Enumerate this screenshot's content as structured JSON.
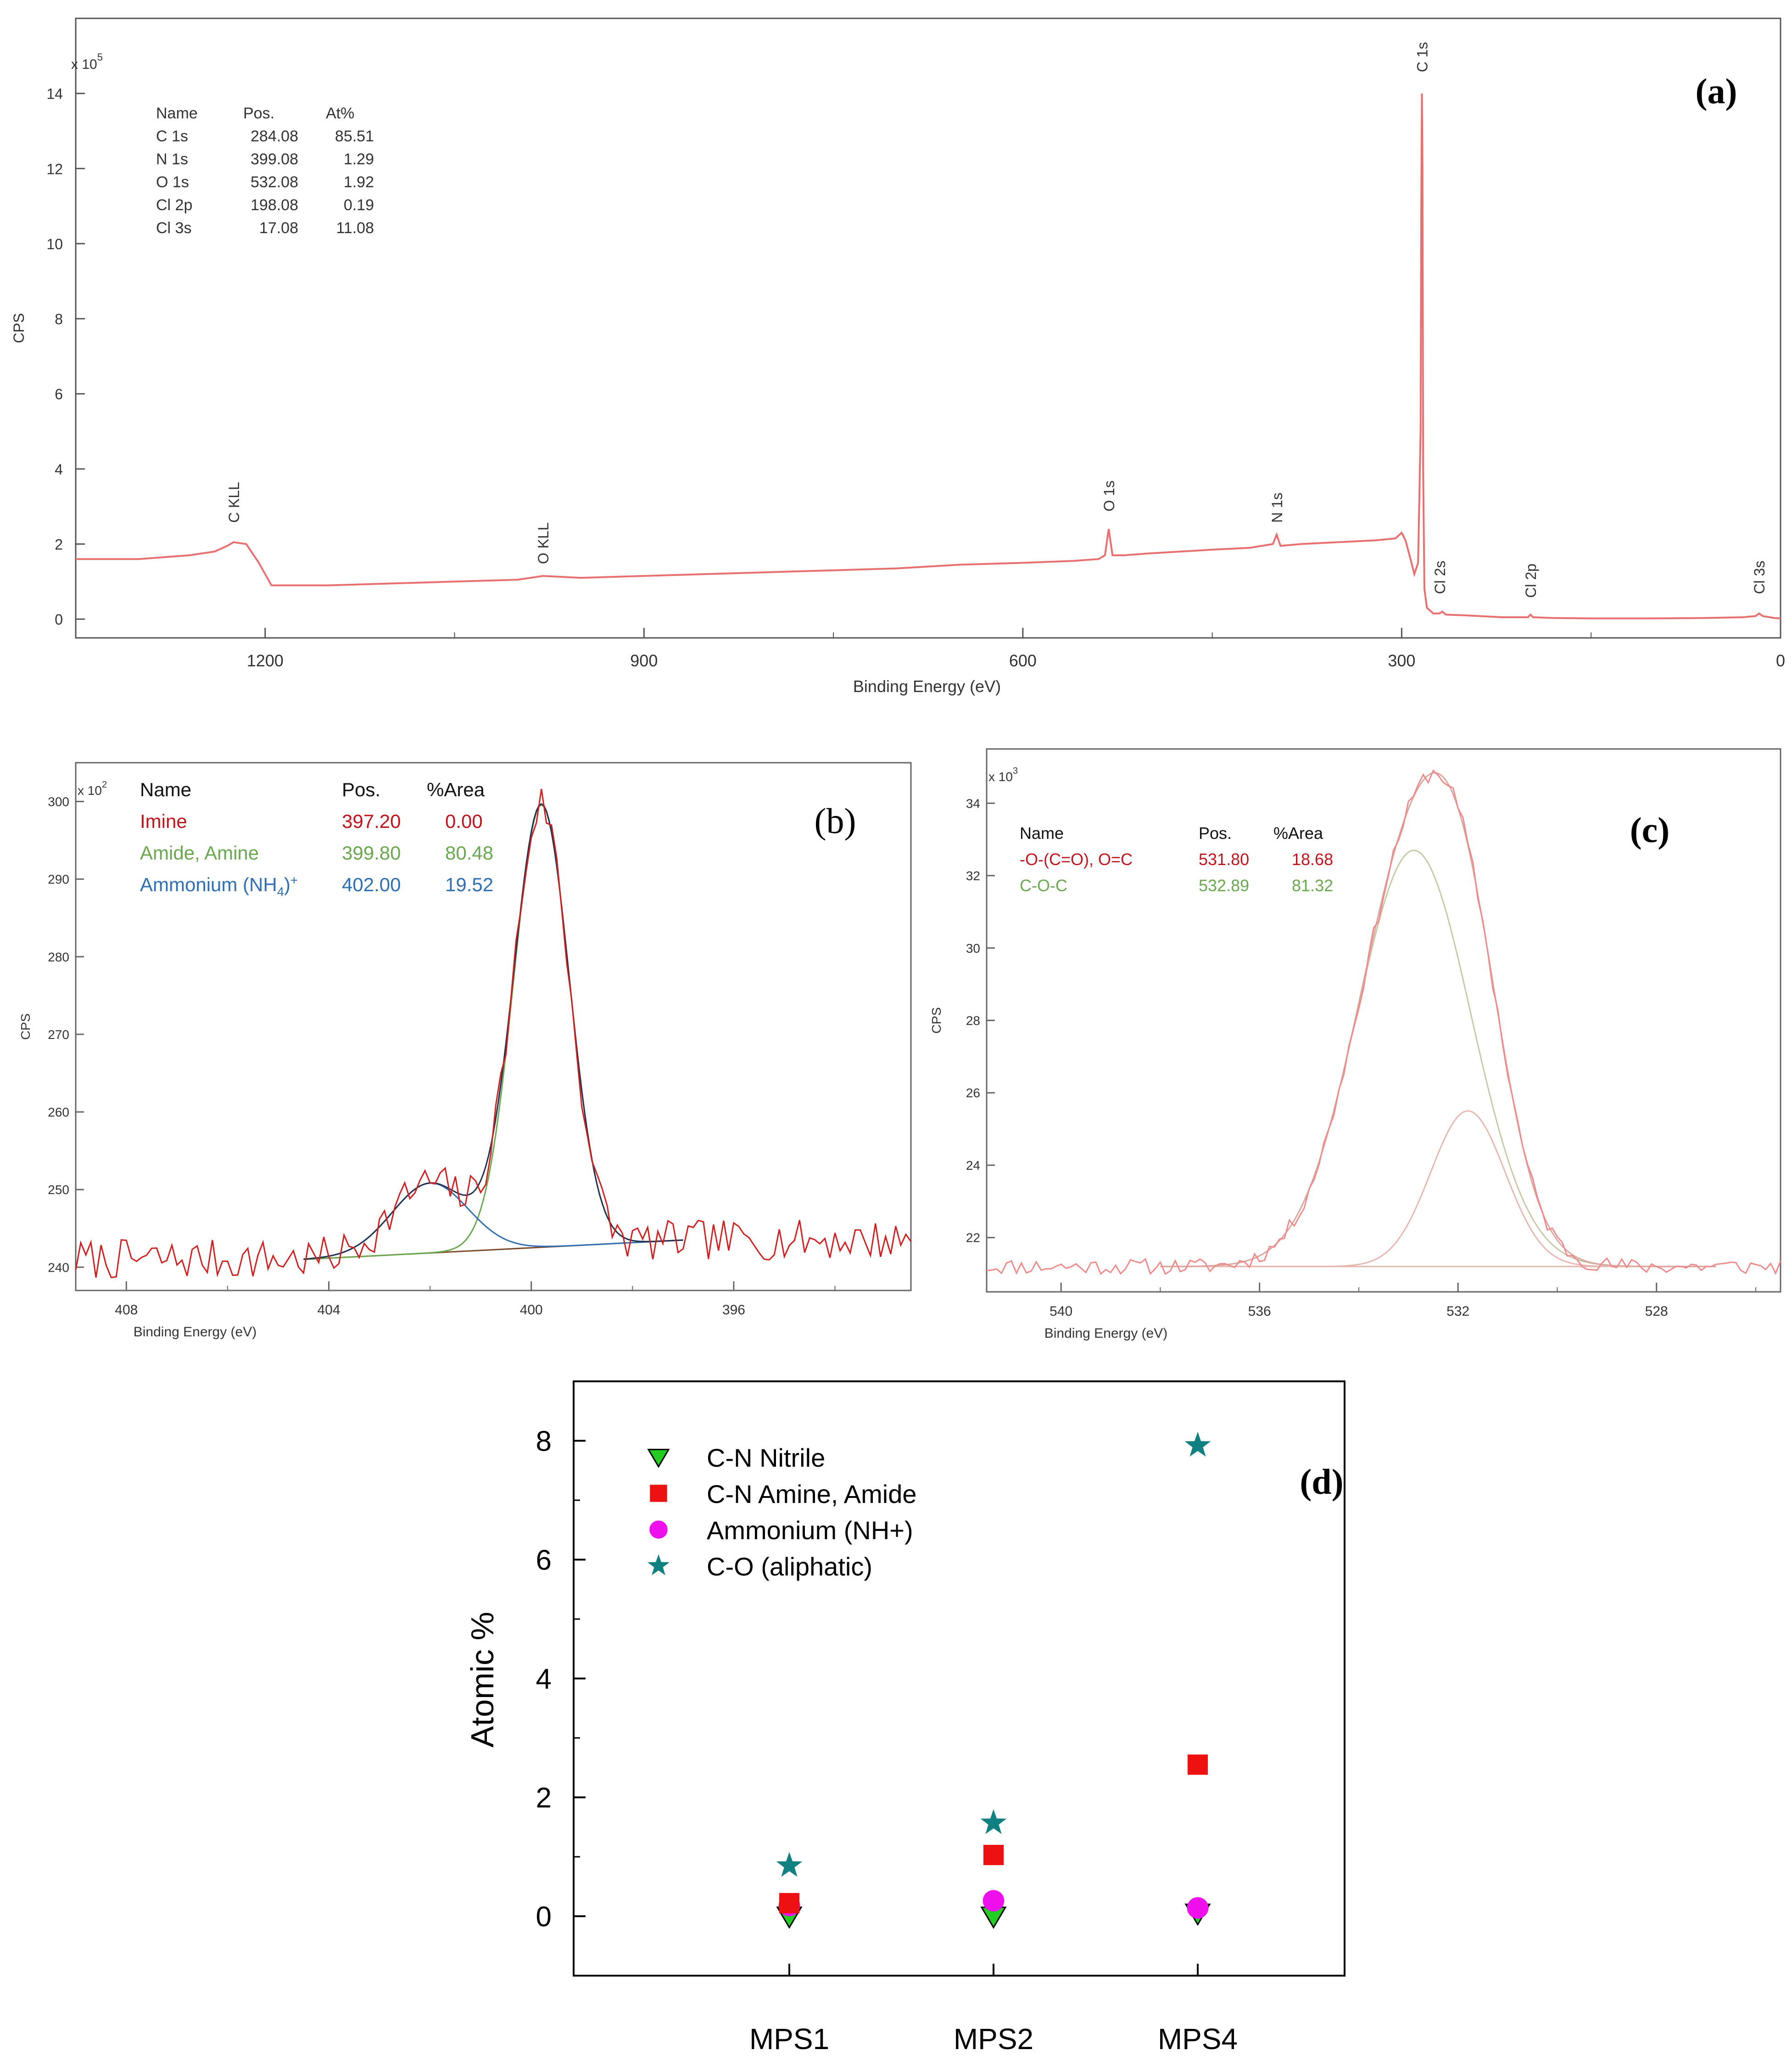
{
  "chart_data": [
    {
      "panel": "(a)",
      "type": "line",
      "xlabel": "Binding Energy (eV)",
      "ylabel": "CPS",
      "y_multiplier": "x 10",
      "y_exponent": "5",
      "x_reversed": true,
      "xlim": [
        1350,
        0
      ],
      "ylim": [
        -0.5,
        16
      ],
      "x_ticks": [
        "1200",
        "900",
        "600",
        "300",
        "0"
      ],
      "y_ticks": [
        "0",
        "2",
        "4",
        "6",
        "8",
        "10",
        "12",
        "14"
      ],
      "table": {
        "headers": [
          "Name",
          "Pos.",
          "At%"
        ],
        "rows": [
          [
            "C 1s",
            "284.08",
            "85.51"
          ],
          [
            "N 1s",
            "399.08",
            "1.29"
          ],
          [
            "O 1s",
            "532.08",
            "1.92"
          ],
          [
            "Cl 2p",
            "198.08",
            "0.19"
          ],
          [
            "Cl 3s",
            "17.08",
            "11.08"
          ]
        ]
      },
      "peak_labels": [
        {
          "text": "C KLL",
          "x": 1225,
          "y": 2.2
        },
        {
          "text": "O KLL",
          "x": 980,
          "y": 1.1
        },
        {
          "text": "O 1s",
          "x": 532,
          "y": 2.5
        },
        {
          "text": "N 1s",
          "x": 399,
          "y": 2.2
        },
        {
          "text": "C 1s",
          "x": 284,
          "y": 14.2
        },
        {
          "text": "Cl 2s",
          "x": 270,
          "y": 0.3
        },
        {
          "text": "Cl 2p",
          "x": 198,
          "y": 0.2
        },
        {
          "text": "Cl 3s",
          "x": 17,
          "y": 0.3
        }
      ],
      "series": [
        {
          "color": "#e87070",
          "x": [
            1350,
            1300,
            1260,
            1240,
            1230,
            1225,
            1215,
            1205,
            1195,
            1150,
            1100,
            1050,
            1000,
            980,
            950,
            900,
            850,
            800,
            750,
            700,
            650,
            600,
            560,
            540,
            535,
            532,
            529,
            520,
            500,
            450,
            420,
            402,
            399,
            396,
            380,
            350,
            320,
            305,
            300,
            297,
            293,
            290,
            287,
            285,
            284.5,
            284,
            283.5,
            283,
            282,
            280,
            275,
            270,
            268,
            265,
            250,
            220,
            200,
            198,
            196,
            180,
            150,
            100,
            60,
            30,
            20,
            17,
            14,
            5,
            0
          ],
          "y": [
            1.6,
            1.6,
            1.7,
            1.8,
            1.95,
            2.05,
            2.0,
            1.5,
            0.9,
            0.9,
            0.95,
            1.0,
            1.05,
            1.15,
            1.1,
            1.15,
            1.2,
            1.25,
            1.3,
            1.35,
            1.45,
            1.5,
            1.55,
            1.6,
            1.7,
            2.4,
            1.7,
            1.7,
            1.75,
            1.85,
            1.9,
            2.0,
            2.25,
            1.95,
            2.0,
            2.05,
            2.1,
            2.15,
            2.3,
            2.1,
            1.6,
            1.2,
            1.5,
            5.0,
            11.0,
            14.0,
            12.0,
            4.0,
            0.8,
            0.3,
            0.15,
            0.15,
            0.2,
            0.12,
            0.1,
            0.05,
            0.05,
            0.12,
            0.05,
            0.03,
            0.02,
            0.02,
            0.03,
            0.05,
            0.08,
            0.15,
            0.08,
            0.03,
            0.02
          ]
        }
      ]
    },
    {
      "panel": "(b)",
      "type": "line",
      "xlabel": "Binding Energy (eV)",
      "ylabel": "CPS",
      "y_multiplier": "x 10",
      "y_exponent": "2",
      "x_reversed": true,
      "xlim": [
        409,
        392.5
      ],
      "ylim": [
        237,
        305
      ],
      "x_ticks": [
        "408",
        "404",
        "400",
        "396"
      ],
      "y_ticks": [
        "240",
        "250",
        "260",
        "270",
        "280",
        "290",
        "300"
      ],
      "table": {
        "headers": [
          "Name",
          "Pos.",
          "%Area"
        ],
        "rows": [
          {
            "name": "Imine",
            "pos": "397.20",
            "area": "0.00",
            "color": "#c0141c"
          },
          {
            "name": "Amide, Amine",
            "pos": "399.80",
            "area": "80.48",
            "color": "#6aa84f"
          },
          {
            "name": "Ammonium (NH",
            "sub": "4",
            "sup": "+",
            "close": ")",
            "pos": "402.00",
            "area": "19.52",
            "color": "#2f6fb3"
          }
        ]
      },
      "components": [
        {
          "name": "Amide, Amine",
          "center": 399.8,
          "height": 57,
          "sigma": 0.55,
          "color": "#6aa84f"
        },
        {
          "name": "Ammonium (NH4)+",
          "center": 402.0,
          "height": 9,
          "sigma": 0.75,
          "color": "#2f6fb3"
        }
      ],
      "baseline": {
        "x": [
          404.5,
          397.0
        ],
        "y": [
          241.0,
          243.5
        ],
        "color": "#7a4a2a"
      },
      "envelope_color": "#1f3050",
      "raw": {
        "color": "#d01f1f",
        "x_start": 409,
        "x_end": 392.5,
        "step": 0.1,
        "noise_amp": 2.6,
        "seed": 7
      }
    },
    {
      "panel": "(c)",
      "type": "line",
      "xlabel": "Binding Energy (eV)",
      "ylabel": "CPS",
      "y_multiplier": "x 10",
      "y_exponent": "3",
      "x_reversed": true,
      "xlim": [
        541.5,
        525.5
      ],
      "ylim": [
        20.5,
        35.5
      ],
      "x_ticks": [
        "540",
        "536",
        "532",
        "528"
      ],
      "y_ticks": [
        "22",
        "24",
        "26",
        "28",
        "30",
        "32",
        "34"
      ],
      "table": {
        "headers": [
          "Name",
          "Pos.",
          "%Area"
        ],
        "rows": [
          {
            "name": "-O-(C=O), O=C",
            "pos": "531.80",
            "area": "18.68",
            "color": "#c0141c"
          },
          {
            "name": "C-O-C",
            "pos": "532.89",
            "area": "81.32",
            "color": "#6aa84f"
          }
        ]
      },
      "components": [
        {
          "name": "C-O-C",
          "center": 532.89,
          "height": 11.5,
          "sigma": 1.15,
          "color": "#c9c9a8"
        },
        {
          "name": "-O-(C=O), O=C",
          "center": 531.8,
          "height": 4.3,
          "sigma": 0.75,
          "color": "#e8b8b0"
        }
      ],
      "baseline": {
        "x": [
          538.0,
          526.8
        ],
        "y": [
          21.2,
          21.2
        ],
        "color": "#e0b8b0"
      },
      "envelope_color": "#d8a8a0",
      "raw": {
        "color": "#f08a8a",
        "x_start": 541.5,
        "x_end": 525.5,
        "step": 0.1,
        "noise_amp": 0.22,
        "seed": 11
      }
    },
    {
      "panel": "(d)",
      "type": "scatter",
      "ylabel": "Atomic %",
      "categories": [
        "MPS1",
        "MPS2",
        "MPS4"
      ],
      "ylim": [
        -1,
        9
      ],
      "y_ticks": [
        "0",
        "2",
        "4",
        "6",
        "8"
      ],
      "series": [
        {
          "name": "C-N Nitrile",
          "marker": "triangle-down",
          "color": "#22cc22",
          "values": [
            0.0,
            0.0,
            0.05
          ]
        },
        {
          "name": "C-N Amine, Amide",
          "marker": "square",
          "color": "#ee1111",
          "values": [
            0.22,
            1.03,
            2.55
          ]
        },
        {
          "name": "Ammonium (NH+)",
          "marker": "circle",
          "color": "#ee11ee",
          "values": [
            0.18,
            0.26,
            0.14
          ]
        },
        {
          "name": "C-O (aliphatic)",
          "marker": "star",
          "color": "#118080",
          "values": [
            0.85,
            1.57,
            7.92
          ]
        }
      ]
    }
  ]
}
